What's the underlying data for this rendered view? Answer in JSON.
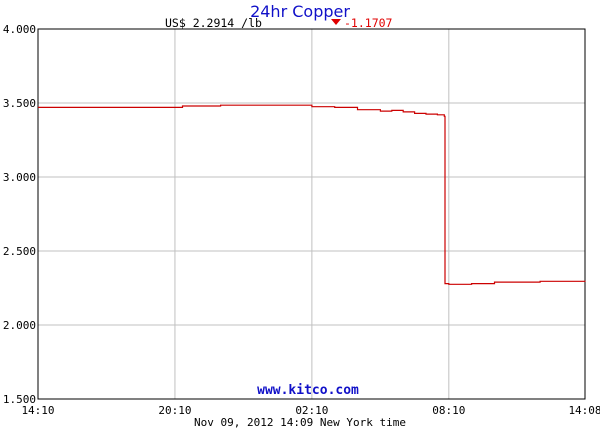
{
  "header": {
    "price_label": "US$ 2.2914 /lb",
    "change_label": "-1.1707"
  },
  "watermark": "www.kitco.com",
  "footer": "Nov 09, 2012 14:09 New York time",
  "colors": {
    "title": "#1010c8",
    "line": "#cc0000",
    "change": "#e00000",
    "grid": "#c0c0c0",
    "axis": "#000000"
  },
  "chart_data": {
    "type": "line",
    "title": "24hr Copper",
    "xlabel": "",
    "ylabel": "",
    "xlim": [
      "14:10",
      "14:08"
    ],
    "ylim": [
      1.5,
      4.0
    ],
    "grid": true,
    "x_ticks": [
      "14:10",
      "20:10",
      "02:10",
      "08:10",
      "14:08"
    ],
    "y_ticks": [
      "4.000",
      "3.500",
      "3.000",
      "2.500",
      "2.000",
      "1.500"
    ],
    "series": [
      {
        "x": [
          "14:10",
          "19:40",
          "20:10",
          "20:30",
          "22:10",
          "00:10",
          "02:10",
          "03:10",
          "04:10",
          "05:10",
          "05:40",
          "06:10",
          "06:40",
          "07:10",
          "07:40",
          "07:55",
          "07:58",
          "08:00",
          "08:10",
          "09:10",
          "10:10",
          "11:10",
          "12:10",
          "13:10",
          "14:08"
        ],
        "values": [
          3.47,
          3.47,
          3.47,
          3.48,
          3.485,
          3.485,
          3.475,
          3.47,
          3.455,
          3.445,
          3.45,
          3.44,
          3.43,
          3.425,
          3.42,
          3.42,
          3.41,
          2.28,
          2.275,
          2.28,
          2.29,
          2.29,
          2.295,
          2.295,
          2.2914
        ]
      }
    ]
  }
}
